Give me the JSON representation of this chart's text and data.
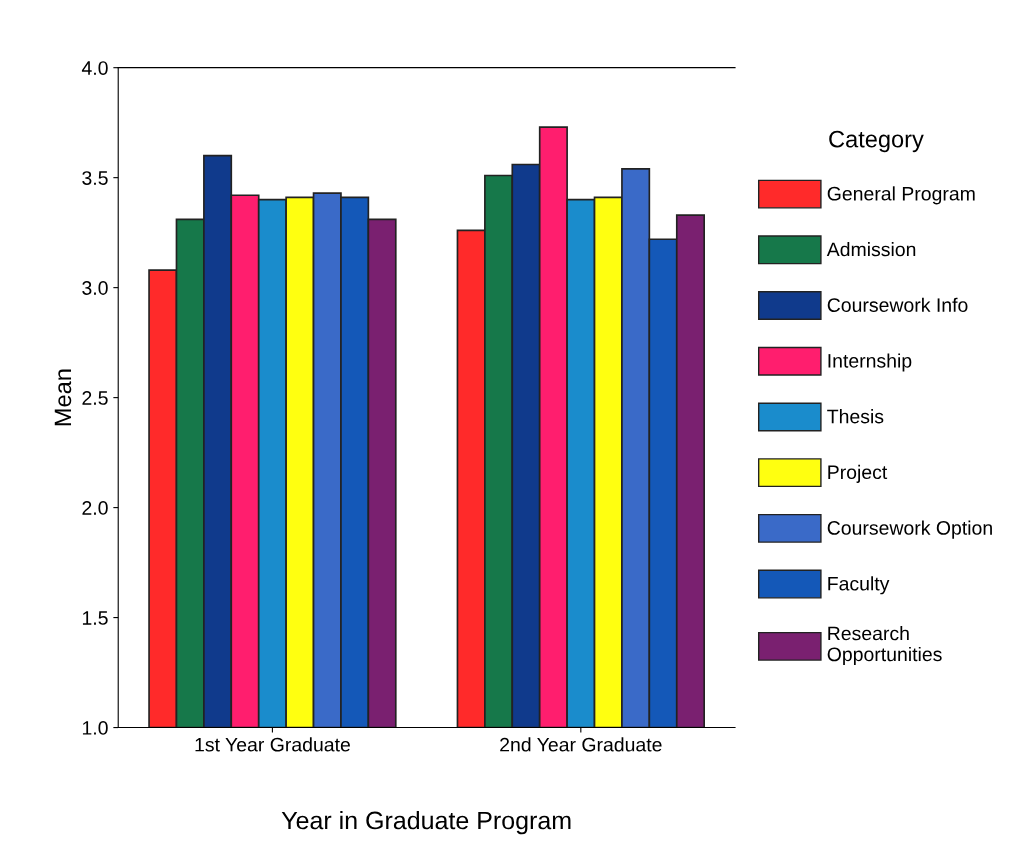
{
  "chart_data": {
    "type": "bar",
    "xlabel": "Year in Graduate Program",
    "ylabel": "Mean",
    "legend_title": "Category",
    "categories": [
      "1st Year Graduate",
      "2nd Year Graduate"
    ],
    "series": [
      {
        "name": "General Program",
        "color": "#ff2a2a",
        "values": [
          3.08,
          3.26
        ]
      },
      {
        "name": "Admission",
        "color": "#16784a",
        "values": [
          3.31,
          3.51
        ]
      },
      {
        "name": "Coursework Info",
        "color": "#103a8c",
        "values": [
          3.6,
          3.56
        ]
      },
      {
        "name": "Internship",
        "color": "#ff1e6e",
        "values": [
          3.42,
          3.73
        ]
      },
      {
        "name": "Thesis",
        "color": "#1a8ccc",
        "values": [
          3.4,
          3.4
        ]
      },
      {
        "name": "Project",
        "color": "#ffff10",
        "values": [
          3.41,
          3.41
        ]
      },
      {
        "name": "Coursework Option",
        "color": "#3a6ac8",
        "values": [
          3.43,
          3.54
        ]
      },
      {
        "name": "Faculty",
        "color": "#1458b8",
        "values": [
          3.41,
          3.22
        ]
      },
      {
        "name": "Research Opportunities",
        "color": "#7a2070",
        "values": [
          3.31,
          3.33
        ]
      }
    ],
    "ylim": [
      1.0,
      4.0
    ],
    "yticks": [
      {
        "value": 1.0,
        "label": "1.0"
      },
      {
        "value": 1.5,
        "label": "1.5"
      },
      {
        "value": 2.0,
        "label": "2.0"
      },
      {
        "value": 2.5,
        "label": "2.5"
      },
      {
        "value": 3.0,
        "label": "3.0"
      },
      {
        "value": 3.5,
        "label": "3.5"
      },
      {
        "value": 4.0,
        "label": "4.0"
      }
    ],
    "grid": false,
    "legend": "right"
  }
}
